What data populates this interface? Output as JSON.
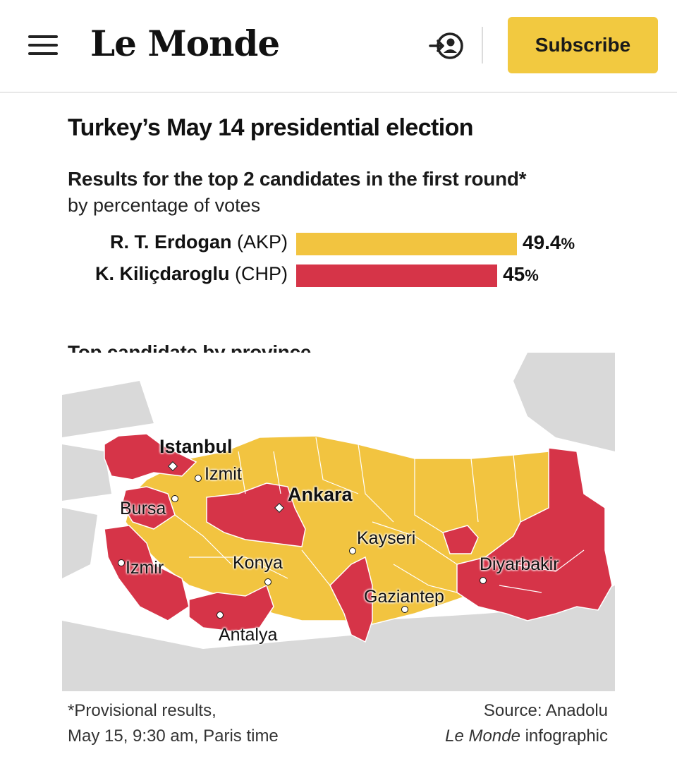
{
  "header": {
    "logo": "Le Monde",
    "subscribe_label": "Subscribe"
  },
  "infographic": {
    "title": "Turkey’s May 14 presidential election",
    "subtitle": "Results for the top 2 candidates in the first round*",
    "subtitle_sub": "by percentage of votes",
    "map_title": "Top candidate by province",
    "footnote_line1": "*Provisional results,",
    "footnote_line2": "May 15, 9:30 am, Paris time",
    "source_line1": "Source: Anadolu",
    "source_line2_italic": "Le Monde",
    "source_line2_rest": " infographic"
  },
  "colors": {
    "akp": "#f2c440",
    "chp": "#d63448",
    "land": "#d9d9d9",
    "sea": "#ffffff"
  },
  "chart_data": {
    "type": "bar",
    "orientation": "horizontal",
    "title": "Results for the top 2 candidates in the first round*",
    "subtitle": "by percentage of votes",
    "categories": [
      "R. T. Erdogan",
      "K. Kiliçdaroglu"
    ],
    "parties": [
      "(AKP)",
      "(CHP)"
    ],
    "values": [
      49.4,
      45
    ],
    "value_labels": [
      "49.4",
      "45"
    ],
    "unit": "%",
    "colors": [
      "#f2c440",
      "#d63448"
    ]
  },
  "map": {
    "cities": [
      {
        "name": "Istanbul",
        "bold": true
      },
      {
        "name": "Izmit",
        "bold": false
      },
      {
        "name": "Bursa",
        "bold": false
      },
      {
        "name": "Ankara",
        "bold": true
      },
      {
        "name": "Kayseri",
        "bold": false
      },
      {
        "name": "Izmir",
        "bold": false
      },
      {
        "name": "Konya",
        "bold": false
      },
      {
        "name": "Diyarbakir",
        "bold": false
      },
      {
        "name": "Gaziantep",
        "bold": false
      },
      {
        "name": "Antalya",
        "bold": false
      }
    ]
  }
}
